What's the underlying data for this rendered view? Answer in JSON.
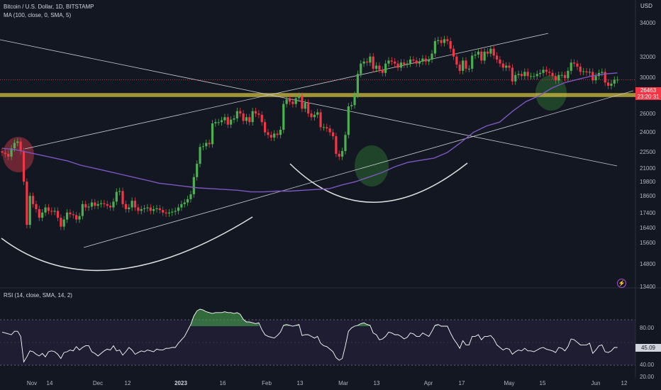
{
  "header": {
    "symbol_line": "Bitcoin / U.S. Dollar, 1D, BITSTAMP",
    "ma_line": "MA (100, close, 0, SMA, 5)",
    "rsi_line": "RSI (14, close, SMA, 14, 2)",
    "currency": "USD"
  },
  "price_tag": {
    "price": "26463",
    "countdown": "23:20:31"
  },
  "rsi_tag": "45.09",
  "colors": {
    "background": "#131722",
    "up": "#4caf50",
    "down": "#f23645",
    "ma": "#7e57c2",
    "rsi": "#ffffff",
    "support_band": "#c5b43e",
    "highlight_red": "#d53a4a",
    "highlight_green": "#2e7d32"
  },
  "axis": {
    "price_ticks": [
      "34000",
      "32000",
      "30000",
      "28000",
      "26000",
      "24000",
      "22500",
      "21000",
      "19800",
      "18600",
      "17400",
      "16400",
      "15600",
      "14800",
      "13400"
    ],
    "rsi_ticks": [
      "80.00",
      "60.00",
      "40.00",
      "20.00"
    ],
    "x_ticks": [
      {
        "label": "Nov",
        "bold": false
      },
      {
        "label": "14",
        "bold": false
      },
      {
        "label": "Dec",
        "bold": false
      },
      {
        "label": "12",
        "bold": false
      },
      {
        "label": "2023",
        "bold": true
      },
      {
        "label": "16",
        "bold": false
      },
      {
        "label": "Feb",
        "bold": false
      },
      {
        "label": "13",
        "bold": false
      },
      {
        "label": "Mar",
        "bold": false
      },
      {
        "label": "13",
        "bold": false
      },
      {
        "label": "Apr",
        "bold": false
      },
      {
        "label": "17",
        "bold": false
      },
      {
        "label": "May",
        "bold": false
      },
      {
        "label": "15",
        "bold": false
      },
      {
        "label": "Jun",
        "bold": false
      },
      {
        "label": "12",
        "bold": false
      }
    ]
  },
  "chart_data": {
    "type": "candlestick",
    "title": "Bitcoin / U.S. Dollar, 1D, BITSTAMP",
    "interval": "1D",
    "start_date": "2022-11-01",
    "ylabel": "USD",
    "price_scale": "log",
    "ylim": [
      13000,
      35000
    ],
    "close": [
      20480,
      20400,
      20200,
      20800,
      21200,
      21300,
      20600,
      18500,
      15900,
      17600,
      17100,
      16800,
      16300,
      16600,
      16900,
      16700,
      16650,
      16700,
      16300,
      15800,
      16200,
      16600,
      16500,
      16450,
      16200,
      16400,
      17100,
      16900,
      16950,
      17200,
      17000,
      17100,
      17150,
      17100,
      17000,
      16900,
      17250,
      17850,
      17900,
      17100,
      16800,
      16900,
      17300,
      16900,
      16700,
      16800,
      16850,
      16900,
      16700,
      16800,
      16850,
      16750,
      16600,
      16550,
      16600,
      16650,
      16700,
      16900,
      17100,
      17200,
      17400,
      17700,
      18800,
      19700,
      20900,
      20950,
      21200,
      21100,
      22700,
      22800,
      22800,
      22950,
      23200,
      22600,
      23000,
      23100,
      23700,
      23500,
      22900,
      23200,
      22800,
      23700,
      23500,
      23400,
      22800,
      22000,
      21800,
      21600,
      21900,
      21800,
      22200,
      24300,
      24700,
      24500,
      24300,
      24800,
      25000,
      23900,
      24400,
      23500,
      23200,
      23400,
      23600,
      22400,
      22400,
      22300,
      22000,
      21700,
      20400,
      20200,
      20600,
      21800,
      24100,
      24200,
      25100,
      27000,
      28000,
      28200,
      28100,
      28700,
      27500,
      27800,
      27400,
      27100,
      28000,
      28300,
      28200,
      28000,
      27600,
      28100,
      27900,
      28000,
      28400,
      28300,
      28000,
      28200,
      28500,
      28200,
      28400,
      29000,
      30300,
      30400,
      30100,
      30500,
      30300,
      29500,
      28700,
      27900,
      27300,
      28300,
      27500,
      27500,
      28800,
      28900,
      29200,
      28300,
      29200,
      29000,
      29500,
      28800,
      28400,
      28000,
      27600,
      27800,
      27600,
      26300,
      26900,
      27000,
      26800,
      27200,
      26800,
      26800,
      26800,
      27000,
      27100,
      27400,
      27200,
      27100,
      26800,
      26400,
      26900,
      26900,
      26600,
      27300,
      28100,
      28000,
      27700,
      27200,
      27250,
      27150,
      27200,
      26400,
      26800,
      27100,
      27200,
      26200,
      25900,
      26100,
      26450,
      26463
    ],
    "ma": [
      20800,
      20700,
      20500,
      20300,
      20100,
      19900,
      19600,
      19400,
      19200,
      19000,
      18800,
      18600,
      18400,
      18300,
      18200,
      18100,
      18050,
      18000,
      17950,
      17850,
      17850,
      17900,
      17900,
      17950,
      18000,
      18050,
      18300,
      18500,
      18800,
      19100,
      19500,
      19800,
      19950,
      20100,
      20500,
      21200,
      22000,
      22500,
      22800,
      23700,
      24500,
      25000,
      25700,
      26200,
      26500,
      26800,
      27000,
      27100
    ],
    "rsi": [
      63,
      62,
      61,
      60,
      64,
      64,
      58,
      28,
      34,
      41,
      40,
      37,
      35,
      38,
      34,
      40,
      41,
      40,
      37,
      32,
      39,
      40,
      42,
      41,
      46,
      42,
      45,
      47,
      47,
      40,
      38,
      35,
      38,
      41,
      43,
      42,
      47,
      41,
      42,
      36,
      40,
      45,
      42,
      37,
      39,
      41,
      40,
      42,
      41,
      40,
      43,
      42,
      42,
      44,
      44,
      45,
      45,
      50,
      54,
      58,
      65,
      72,
      82,
      88,
      90,
      89,
      87,
      86,
      85,
      86,
      86,
      86,
      87,
      86,
      86,
      85,
      86,
      84,
      78,
      75,
      75,
      74,
      73,
      74,
      66,
      60,
      58,
      57,
      56,
      59,
      63,
      71,
      72,
      71,
      70,
      71,
      72,
      59,
      60,
      60,
      58,
      56,
      58,
      50,
      47,
      46,
      43,
      40,
      33,
      30,
      32,
      47,
      64,
      68,
      70,
      71,
      73,
      74,
      72,
      71,
      62,
      60,
      54,
      55,
      58,
      63,
      62,
      60,
      60,
      58,
      55,
      57,
      62,
      61,
      58,
      58,
      62,
      60,
      58,
      64,
      71,
      72,
      70,
      70,
      70,
      62,
      55,
      50,
      44,
      53,
      48,
      48,
      58,
      58,
      60,
      54,
      58,
      58,
      59,
      55,
      48,
      45,
      42,
      44,
      43,
      37,
      40,
      42,
      41,
      44,
      41,
      41,
      40,
      42,
      44,
      45,
      43,
      42,
      41,
      39,
      45,
      44,
      41,
      46,
      55,
      54,
      51,
      48,
      48,
      48,
      50,
      38,
      42,
      47,
      48,
      40,
      39,
      41,
      45,
      45
    ],
    "horizontal_lines": [
      {
        "price": 26463,
        "label": "26463"
      }
    ],
    "support_band": [
      24900,
      25250
    ]
  }
}
